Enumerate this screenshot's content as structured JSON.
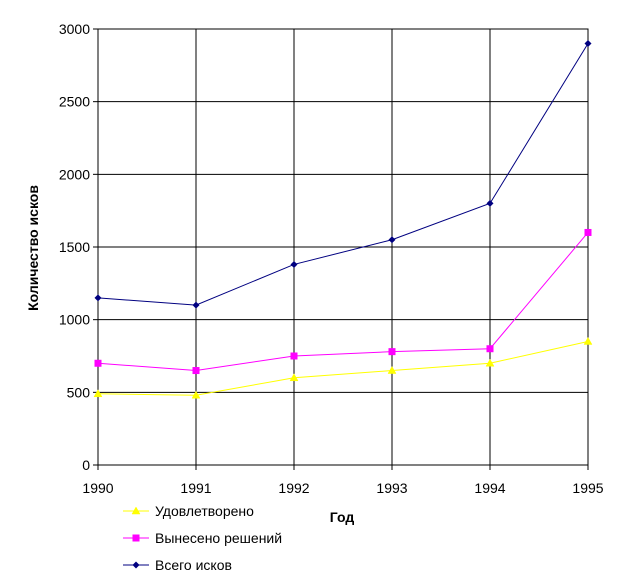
{
  "chart_data": {
    "type": "line",
    "title": "",
    "xlabel": "Год",
    "ylabel": "Количество исков",
    "x": [
      1990,
      1991,
      1992,
      1993,
      1994,
      1995
    ],
    "x_tick_labels": [
      "1990",
      "1991",
      "1992",
      "1993",
      "1994",
      "1995"
    ],
    "ylim": [
      0,
      3000
    ],
    "y_ticks": [
      0,
      500,
      1000,
      1500,
      2000,
      2500,
      3000
    ],
    "y_tick_labels": [
      "0",
      "500",
      "1000",
      "1500",
      "2000",
      "2500",
      "3000"
    ],
    "grid": true,
    "legend_placement": "bottom-left",
    "series": [
      {
        "name": "Удовлетворено",
        "color": "#ffff00",
        "marker": "triangle",
        "values": [
          490,
          480,
          600,
          650,
          700,
          850
        ]
      },
      {
        "name": "Вынесено решений",
        "color": "#ff00ff",
        "marker": "square",
        "values": [
          700,
          650,
          750,
          780,
          800,
          1600
        ]
      },
      {
        "name": "Всего исков",
        "color": "#000080",
        "marker": "diamond",
        "values": [
          1150,
          1100,
          1380,
          1550,
          1800,
          2900
        ]
      }
    ]
  }
}
